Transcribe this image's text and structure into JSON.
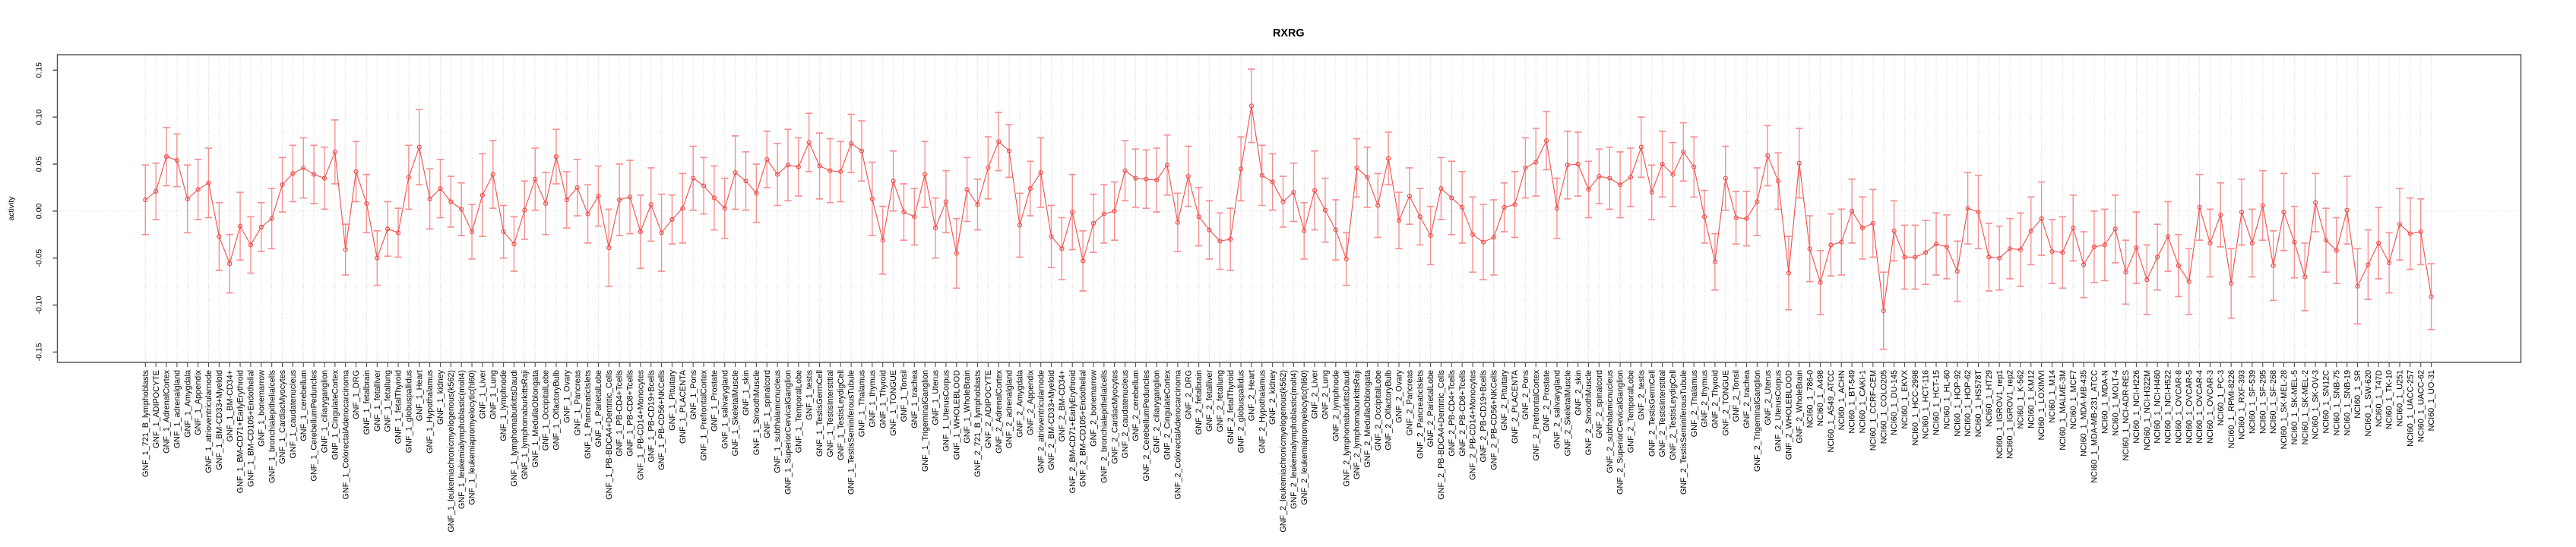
{
  "title": "RXRG",
  "chart_data": {
    "type": "line",
    "title": "RXRG",
    "xlabel": "",
    "ylabel": "activity",
    "ylim": [
      -0.15,
      0.15
    ],
    "yticks": [
      "-0.15",
      "-0.10",
      "-0.05",
      "0.00",
      "0.05",
      "0.10",
      "0.15"
    ],
    "ytick_values": [
      -0.15,
      -0.1,
      -0.05,
      0.0,
      0.05,
      0.1,
      0.15
    ],
    "grid": "vertical dotted line at every category and dotted horizontal line at zero",
    "legend": "none",
    "marker": "open-circle",
    "error_bars": "symmetric, with end caps",
    "colors": {
      "series": "#ee4f4c",
      "error_bar": "#f59090",
      "grid": "#c9c9c9",
      "box": "#4d4d4d",
      "text": "#000000",
      "background": "#ffffff"
    },
    "categories": [
      "GNF_1_721_B_lymphoblasts",
      "GNF_1_ADIPOCYTE",
      "GNF_1_AdrenalCortex",
      "GNF_1_adrenalgland",
      "GNF_1_Amygdala",
      "GNF_1_Appendix",
      "GNF_1_atrioventricularnode",
      "GNF_1_BM-CD33+Myeloid",
      "GNF_1_BM-CD34+",
      "GNF_1_BM-CD71+EarlyErythroid",
      "GNF_1_BM-CD105+Endothelial",
      "GNF_1_bonemarrow",
      "GNF_1_bronchialepithelialcells",
      "GNF_1_CardiacMyocytes",
      "GNF_1_caudatenucleus",
      "GNF_1_cerebellum",
      "GNF_1_CerebellumPeduncles",
      "GNF_1_ciliaryganglion",
      "GNF_1_CingulateCortex",
      "GNF_1_ColorectalAdenocarcinoma",
      "GNF_1_DRG",
      "GNF_1_fetalbrain",
      "GNF_1_fetalliver",
      "GNF_1_fetallung",
      "GNF_1_fetalThyroid",
      "GNF_1_globuspallidus",
      "GNF_1_Heart",
      "GNF_1_Hypothalamus",
      "GNF_1_kidney",
      "GNF_1_leukemiachronicmyelogenous(k562)",
      "GNF_1_leukemialymphoblastic(molt4)",
      "GNF_1_leukemiapromyelocytic(hl60)",
      "GNF_1_Liver",
      "GNF_1_Lung",
      "GNF_1_lymphnode",
      "GNF_1_lymphomaburkittsDaudi",
      "GNF_1_lymphomaburkittsRaji",
      "GNF_1_MedullaOblongata",
      "GNF_1_OccipitalLobe",
      "GNF_1_OlfactoryBulb",
      "GNF_1_Ovary",
      "GNF_1_Pancreas",
      "GNF_1_PancreaticIslets",
      "GNF_1_ParietalLobe",
      "GNF_1_PB-BDCA4+Dentritic_Cells",
      "GNF_1_PB-CD4+Tcells",
      "GNF_1_PB-CD8+Tcells",
      "GNF_1_PB-CD14+Monocytes",
      "GNF_1_PB-CD19+Bcells",
      "GNF_1_PB-CD56+NKCells",
      "GNF_1_Pituitary",
      "GNF_1_PLACENTA",
      "GNF_1_Pons",
      "GNF_1_PrefrontalCortex",
      "GNF_1_Prostate",
      "GNF_1_salivarygland",
      "GNF_1_SkeletalMuscle",
      "GNF_1_skin",
      "GNF_1_SmoothMuscle",
      "GNF_1_spinalcord",
      "GNF_1_subthalamicnucleus",
      "GNF_1_SuperiorCervicalGanglion",
      "GNF_1_TemporalLobe",
      "GNF_1_testis",
      "GNF_1_TestisGermCell",
      "GNF_1_TestisInterstitial",
      "GNF_1_TestisLeydigCell",
      "GNF_1_TestisSeminiferousTubule",
      "GNF_1_Thalamus",
      "GNF_1_thymus",
      "GNF_1_Thyroid",
      "GNF_1_TONGUE",
      "GNF_1_Tonsil",
      "GNF_1_trachea",
      "GNF_1_TrigeminalGanglion",
      "GNF_1_Uterus",
      "GNF_1_UterusCorpus",
      "GNF_1_WHOLEBLOOD",
      "GNF_1_WholeBrain",
      "GNF_2_721_B_lymphoblasts",
      "GNF_2_ADIPOCYTE",
      "GNF_2_AdrenalCortex",
      "GNF_2_adrenalgland",
      "GNF_2_Amygdala",
      "GNF_2_Appendix",
      "GNF_2_atrioventricularnode",
      "GNF_2_BM-CD33+Myeloid",
      "GNF_2_BM-CD34+",
      "GNF_2_BM-CD71+EarlyErythroid",
      "GNF_2_BM-CD105+Endothelial",
      "GNF_2_bonemarrow",
      "GNF_2_bronchialepithelialcells",
      "GNF_2_CardiacMyocytes",
      "GNF_2_caudatenucleus",
      "GNF_2_cerebellum",
      "GNF_2_CerebellumPeduncles",
      "GNF_2_ciliaryganglion",
      "GNF_2_CingulateCortex",
      "GNF_2_ColorectalAdenocarcinoma",
      "GNF_2_DRG",
      "GNF_2_fetalbrain",
      "GNF_2_fetalliver",
      "GNF_2_fetallung",
      "GNF_2_fetalThyroid",
      "GNF_2_globuspallidus",
      "GNF_2_Heart",
      "GNF_2_Hypothalamus",
      "GNF_2_kidney",
      "GNF_2_leukemiachronicmyelogenous(k562)",
      "GNF_2_leukemialymphoblastic(molt4)",
      "GNF_2_leukemiapromyelocytic(hl60)",
      "GNF_2_Liver",
      "GNF_2_Lung",
      "GNF_2_lymphnode",
      "GNF_2_lymphomaburkittsDaudi",
      "GNF_2_lymphomaburkittsRaji",
      "GNF_2_MedullaOblongata",
      "GNF_2_OccipitalLobe",
      "GNF_2_OlfactoryBulb",
      "GNF_2_Ovary",
      "GNF_2_Pancreas",
      "GNF_2_PancreaticIslets",
      "GNF_2_ParietalLobe",
      "GNF_2_PB-BDCA4+Dentritic_Cells",
      "GNF_2_PB-CD4+Tcells",
      "GNF_2_PB-CD8+Tcells",
      "GNF_2_PB-CD14+Monocytes",
      "GNF_2_PB-CD19+Bcells",
      "GNF_2_PB-CD56+NKCells",
      "GNF_2_Pituitary",
      "GNF_2_PLACENTA",
      "GNF_2_Pons",
      "GNF_2_PrefrontalCortex",
      "GNF_2_Prostate",
      "GNF_2_salivarygland",
      "GNF_2_SkeletalMuscle",
      "GNF_2_skin",
      "GNF_2_SmoothMuscle",
      "GNF_2_spinalcord",
      "GNF_2_subthalamicnucleus",
      "GNF_2_SuperiorCervicalGanglion",
      "GNF_2_TemporalLobe",
      "GNF_2_testis",
      "GNF_2_TestisGermCell",
      "GNF_2_TestisInterstitial",
      "GNF_2_TestisLeydigCell",
      "GNF_2_TestisSeminiferousTubule",
      "GNF_2_Thalamus",
      "GNF_2_thymus",
      "GNF_2_Thyroid",
      "GNF_2_TONGUE",
      "GNF_2_Tonsil",
      "GNF_2_trachea",
      "GNF_2_TrigeminalGanglion",
      "GNF_2_Uterus",
      "GNF_2_UterusCorpus",
      "GNF_2_WHOLEBLOOD",
      "GNF_2_WholeBrain",
      "NCI60_1_786-0",
      "NCI60_1_A498",
      "NCI60_1_A549_ATCC",
      "NCI60_1_ACHN",
      "NCI60_1_BT-549",
      "NCI60_1_CAKI-1",
      "NCI60_1_CCRF-CEM",
      "NCI60_1_COLO205",
      "NCI60_1_DU-145",
      "NCI60_1_EKVX",
      "NCI60_1_HCC-2998",
      "NCI60_1_HCT-116",
      "NCI60_1_HCT-15",
      "NCI60_1_HL-60",
      "NCI60_1_HOP-92",
      "NCI60_1_HOP-62",
      "NCI60_1_HS578T",
      "NCI60_1_HT29",
      "NCI60_1_IGROV1_rep1",
      "NCI60_1_IGROV1_rep2",
      "NCI60_1_K-562",
      "NCI60_1_KM12",
      "NCI60_1_LOXIMVI",
      "NCI60_1_M14",
      "NCI60_1_MALME-3M",
      "NCI60_1_MCF7",
      "NCI60_1_MDA-MB-435",
      "NCI60_1_MDA-MB-231_ATCC",
      "NCI60_1_MDA-N",
      "NCI60_1_MOLT-4",
      "NCI60_1_NCI-ADR-RES",
      "NCI60_1_NCI-H226",
      "NCI60_1_NCI-H322M",
      "NCI60_1_NCI-H460",
      "NCI60_1_NCI-H522",
      "NCI60_1_OVCAR-8",
      "NCI60_1_OVCAR-5",
      "NCI60_1_OVCAR-4",
      "NCI60_1_OVCAR-3",
      "NCI60_1_PC-3",
      "NCI60_1_RPMI-8226",
      "NCI60_1_RXF-393",
      "NCI60_1_SF-539",
      "NCI60_1_SF-295",
      "NCI60_1_SF-268",
      "NCI60_1_SK-MEL-28",
      "NCI60_1_SK-MEL-5",
      "NCI60_1_SK-MEL-2",
      "NCI60_1_SK-OV-3",
      "NCI60_1_SN12C",
      "NCI60_1_SNB-75",
      "NCI60_1_SNB-19",
      "NCI60_1_SR",
      "NCI60_1_SW-620",
      "NCI60_1_T47D",
      "NCI60_1_TK-10",
      "NCI60_1_U251",
      "NCI60_1_UACC-257",
      "NCI60_1_UACC-62",
      "NCI60_1_UO-31"
    ],
    "values": [
      0.012,
      0.021,
      0.058,
      0.054,
      0.013,
      0.023,
      0.03,
      -0.027,
      -0.056,
      -0.016,
      -0.036,
      -0.017,
      -0.008,
      0.028,
      0.04,
      0.046,
      0.039,
      0.035,
      0.063,
      -0.041,
      0.042,
      0.008,
      -0.05,
      -0.019,
      -0.023,
      0.036,
      0.068,
      0.013,
      0.024,
      0.01,
      0.002,
      -0.022,
      0.017,
      0.039,
      -0.022,
      -0.035,
      0.001,
      0.034,
      0.008,
      0.058,
      0.012,
      0.025,
      -0.003,
      0.016,
      -0.039,
      0.012,
      0.015,
      -0.022,
      0.007,
      -0.023,
      -0.009,
      0.003,
      0.035,
      0.027,
      0.014,
      0.003,
      0.041,
      0.032,
      0.019,
      0.055,
      0.039,
      0.049,
      0.047,
      0.073,
      0.048,
      0.043,
      0.042,
      0.072,
      0.064,
      0.013,
      -0.031,
      0.032,
      -0.001,
      -0.006,
      0.039,
      -0.018,
      0.01,
      -0.045,
      0.023,
      0.007,
      0.046,
      0.074,
      0.064,
      -0.015,
      0.024,
      0.041,
      -0.027,
      -0.04,
      -0.001,
      -0.053,
      -0.013,
      -0.003,
      0.0,
      0.043,
      0.035,
      0.034,
      0.033,
      0.049,
      -0.012,
      0.037,
      -0.006,
      -0.02,
      -0.032,
      -0.03,
      0.045,
      0.112,
      0.038,
      0.031,
      0.01,
      0.02,
      -0.021,
      0.022,
      0.001,
      -0.02,
      -0.051,
      0.046,
      0.036,
      0.006,
      0.056,
      -0.01,
      0.016,
      -0.006,
      -0.026,
      0.024,
      0.014,
      0.004,
      -0.025,
      -0.033,
      -0.028,
      0.004,
      0.007,
      0.046,
      0.052,
      0.075,
      0.003,
      0.049,
      0.05,
      0.023,
      0.037,
      0.035,
      0.028,
      0.036,
      0.068,
      0.02,
      0.05,
      0.039,
      0.063,
      0.047,
      -0.006,
      -0.054,
      0.035,
      -0.007,
      -0.008,
      0.01,
      0.059,
      0.032,
      -0.066,
      0.051,
      -0.04,
      -0.076,
      -0.036,
      -0.033,
      0.0,
      -0.018,
      -0.013,
      -0.106,
      -0.021,
      -0.049,
      -0.049,
      -0.044,
      -0.035,
      -0.038,
      -0.064,
      0.003,
      -0.001,
      -0.049,
      -0.05,
      -0.04,
      -0.041,
      -0.021,
      -0.008,
      -0.043,
      -0.044,
      -0.018,
      -0.057,
      -0.038,
      -0.036,
      -0.019,
      -0.065,
      -0.039,
      -0.073,
      -0.049,
      -0.027,
      -0.058,
      -0.075,
      0.004,
      -0.034,
      -0.004,
      -0.077,
      -0.001,
      -0.034,
      0.006,
      -0.058,
      -0.001,
      -0.033,
      -0.07,
      0.009,
      -0.031,
      -0.042,
      0.001,
      -0.08,
      -0.057,
      -0.034,
      -0.055,
      -0.014,
      -0.024,
      -0.022,
      -0.091
    ],
    "errors": [
      0.037,
      0.03,
      0.031,
      0.028,
      0.036,
      0.032,
      0.037,
      0.036,
      0.031,
      0.036,
      0.03,
      0.026,
      0.032,
      0.029,
      0.03,
      0.032,
      0.031,
      0.033,
      0.034,
      0.027,
      0.032,
      0.031,
      0.029,
      0.029,
      0.026,
      0.034,
      0.04,
      0.032,
      0.031,
      0.027,
      0.028,
      0.029,
      0.044,
      0.036,
      0.028,
      0.029,
      0.031,
      0.033,
      0.033,
      0.029,
      0.03,
      0.03,
      0.031,
      0.032,
      0.041,
      0.038,
      0.039,
      0.039,
      0.039,
      0.041,
      0.026,
      0.037,
      0.034,
      0.03,
      0.034,
      0.032,
      0.039,
      0.031,
      0.031,
      0.03,
      0.033,
      0.038,
      0.031,
      0.031,
      0.035,
      0.034,
      0.032,
      0.031,
      0.032,
      0.039,
      0.036,
      0.032,
      0.03,
      0.03,
      0.035,
      0.032,
      0.033,
      0.037,
      0.034,
      0.027,
      0.033,
      0.031,
      0.028,
      0.034,
      0.029,
      0.037,
      0.033,
      0.033,
      0.04,
      0.032,
      0.031,
      0.031,
      0.031,
      0.032,
      0.031,
      0.031,
      0.034,
      0.032,
      0.031,
      0.032,
      0.031,
      0.031,
      0.03,
      0.033,
      0.034,
      0.039,
      0.032,
      0.03,
      0.027,
      0.031,
      0.03,
      0.042,
      0.034,
      0.032,
      0.028,
      0.031,
      0.032,
      0.034,
      0.028,
      0.03,
      0.03,
      0.03,
      0.031,
      0.033,
      0.039,
      0.038,
      0.04,
      0.04,
      0.04,
      0.026,
      0.035,
      0.032,
      0.036,
      0.031,
      0.032,
      0.036,
      0.034,
      0.03,
      0.029,
      0.033,
      0.035,
      0.031,
      0.032,
      0.029,
      0.035,
      0.034,
      0.031,
      0.032,
      0.028,
      0.03,
      0.034,
      0.028,
      0.029,
      0.036,
      0.032,
      0.03,
      0.039,
      0.037,
      0.035,
      0.034,
      0.033,
      0.035,
      0.034,
      0.033,
      0.036,
      0.041,
      0.032,
      0.034,
      0.034,
      0.034,
      0.033,
      0.034,
      0.032,
      0.038,
      0.039,
      0.036,
      0.034,
      0.032,
      0.039,
      0.036,
      0.039,
      0.034,
      0.038,
      0.035,
      0.035,
      0.038,
      0.038,
      0.036,
      0.034,
      0.038,
      0.037,
      0.035,
      0.037,
      0.033,
      0.035,
      0.035,
      0.036,
      0.034,
      0.037,
      0.035,
      0.036,
      0.037,
      0.037,
      0.041,
      0.038,
      0.036,
      0.031,
      0.034,
      0.035,
      0.036,
      0.04,
      0.037,
      0.038,
      0.032,
      0.038,
      0.038,
      0.035,
      0.035
    ]
  }
}
